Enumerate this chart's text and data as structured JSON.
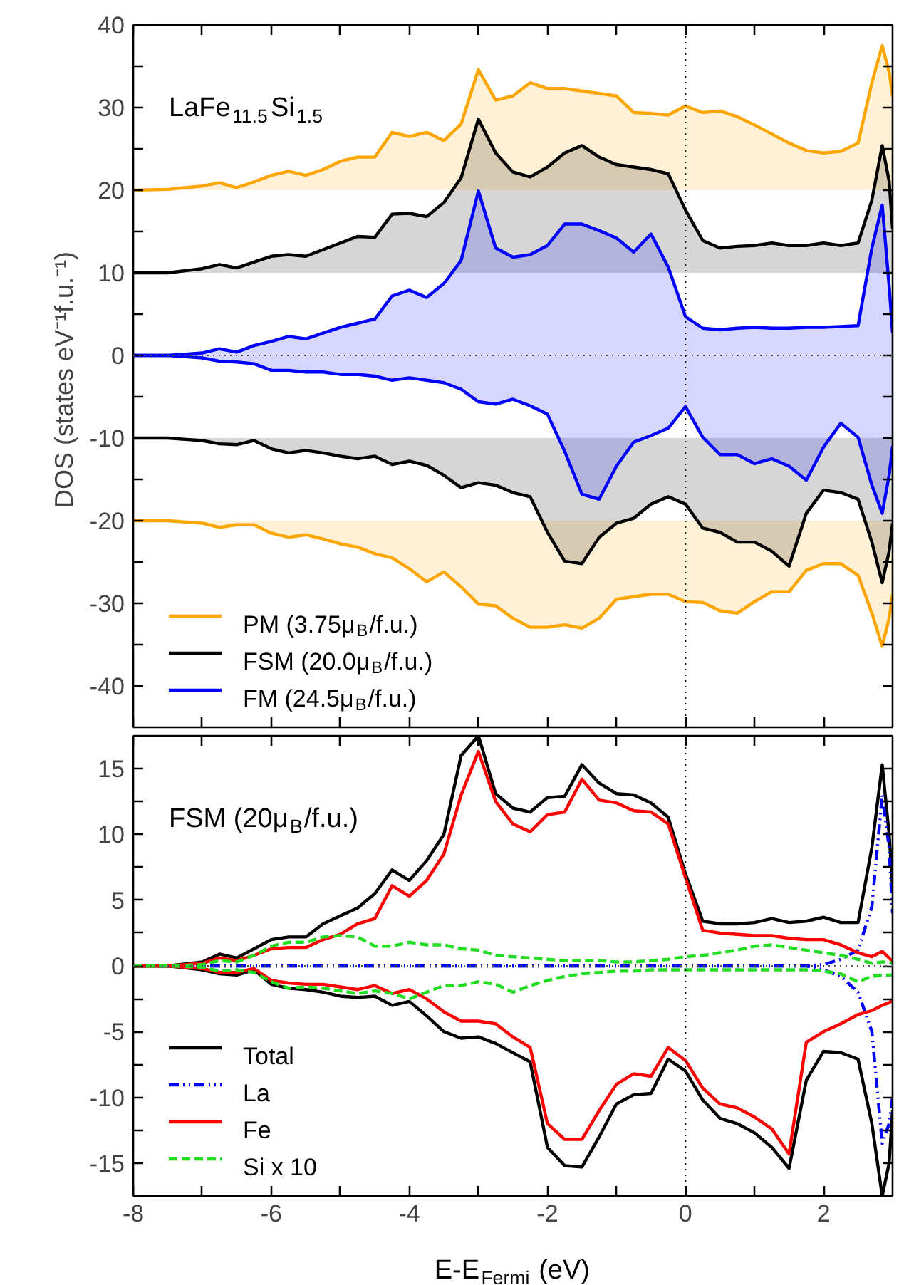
{
  "chart_data": [
    {
      "type": "area",
      "ylabel": "DOS  (states eV⁻¹f.u.⁻¹)",
      "tick_labels": "y",
      "legend": "bottom left",
      "xlim": [
        -8,
        3
      ],
      "ylim": [
        -45,
        40
      ],
      "xticks": [
        -8,
        {
          "value": -7,
          "label": null
        },
        -6,
        {
          "value": -5,
          "label": null
        },
        -4,
        {
          "value": -3,
          "label": null
        },
        -2,
        {
          "value": -1,
          "label": null
        },
        0,
        {
          "value": 1,
          "label": null
        },
        2
      ],
      "yticks": [
        -40,
        {
          "value": -35,
          "label": null
        },
        -30,
        {
          "value": -25,
          "label": null
        },
        -20,
        {
          "value": -15,
          "label": null
        },
        -10,
        {
          "value": -5,
          "label": null
        },
        0,
        {
          "value": 5,
          "label": null
        },
        10,
        {
          "value": 15,
          "label": null
        },
        20,
        {
          "value": 25,
          "label": null
        },
        30,
        {
          "value": 35,
          "label": null
        },
        40
      ],
      "annotations": [
        "LaFe$_{11.5}$Si$_{1.5}$"
      ],
      "ref_lines": [
        {
          "axis": "x",
          "value": 0,
          "line_style": "dotted",
          "color": "#000000"
        },
        {
          "axis": "y",
          "value": 0,
          "line_style": "dotted",
          "color": "#555555"
        }
      ],
      "x": [
        -8,
        -7.5,
        -7,
        -6.75,
        -6.5,
        -6.25,
        -6,
        -5.75,
        -5.5,
        -5.25,
        -5,
        -4.75,
        -4.5,
        -4.25,
        -4,
        -3.75,
        -3.5,
        -3.25,
        -3,
        -2.75,
        -2.5,
        -2.25,
        -2,
        -1.75,
        -1.5,
        -1.25,
        -1,
        -0.75,
        -0.5,
        -0.25,
        0,
        0.25,
        0.5,
        0.75,
        1,
        1.25,
        1.5,
        1.75,
        2,
        2.25,
        2.5,
        2.7,
        2.85,
        2.95,
        3
      ],
      "series": [
        {
          "name": "PM    (3.75μ$_{B}$/f.u.)",
          "color": "#ffa500",
          "values": [
            20,
            20.1,
            20.5,
            20.9,
            20.3,
            21,
            21.8,
            22.3,
            21.8,
            22.5,
            23.5,
            24,
            24,
            27,
            26.5,
            27,
            26,
            28,
            34.6,
            30.9,
            31.4,
            33,
            32.3,
            32.3,
            32,
            31.7,
            31.4,
            29.4,
            29.3,
            29.1,
            30.2,
            29.4,
            29.6,
            28.9,
            27.9,
            26.8,
            25.7,
            24.8,
            24.5,
            24.7,
            25.7,
            33,
            37.5,
            34.3,
            31.4
          ]
        },
        {
          "color": "#ffa500",
          "values": [
            -20,
            -20,
            -20.3,
            -20.8,
            -20.5,
            -20.5,
            -21.5,
            -22,
            -21.7,
            -22.2,
            -22.8,
            -23.2,
            -24,
            -24.5,
            -25.8,
            -27.4,
            -26.2,
            -28,
            -30.1,
            -30.3,
            -31.8,
            -32.9,
            -32.9,
            -32.6,
            -33,
            -31.8,
            -29.5,
            -29.2,
            -28.9,
            -28.9,
            -29.8,
            -29.9,
            -30.9,
            -31.2,
            -29.8,
            -28.6,
            -28.6,
            -26,
            -25.2,
            -25.2,
            -26.6,
            -31.2,
            -35.2,
            -31.8,
            -28.9
          ]
        },
        {
          "name": "FSM (20.0μ$_{B}$/f.u.)",
          "color": "#000000",
          "values": [
            10,
            10,
            10.5,
            11,
            10.6,
            11.3,
            12,
            12.2,
            12,
            12.8,
            13.6,
            14.4,
            14.3,
            17.1,
            17.2,
            16.8,
            18.5,
            21.5,
            28.6,
            24.5,
            22.2,
            21.6,
            22.8,
            24.5,
            25.4,
            24,
            23.1,
            22.8,
            22.5,
            22,
            17.6,
            13.9,
            13,
            13.2,
            13.3,
            13.6,
            13.3,
            13.3,
            13.6,
            13.3,
            13.6,
            18.8,
            25.4,
            21.1,
            15.3
          ]
        },
        {
          "color": "#000000",
          "values": [
            -10,
            -10,
            -10.3,
            -10.7,
            -10.8,
            -10.3,
            -11.3,
            -11.8,
            -11.5,
            -11.8,
            -12.2,
            -12.5,
            -12.2,
            -13.2,
            -12.8,
            -13.3,
            -14.5,
            -16,
            -15.4,
            -15.7,
            -16.6,
            -17.1,
            -21.4,
            -24.9,
            -25.2,
            -22,
            -20.3,
            -19.7,
            -18,
            -17.1,
            -18,
            -20.9,
            -21.4,
            -22.6,
            -22.6,
            -23.7,
            -25.5,
            -19.1,
            -16.3,
            -16.6,
            -17.4,
            -22.6,
            -27.5,
            -23.7,
            -20.3
          ]
        },
        {
          "name": "FM    (24.5μ$_{B}$/f.u.)",
          "color": "#0000ff",
          "values": [
            0,
            0,
            0.3,
            0.8,
            0.4,
            1.2,
            1.7,
            2.3,
            2,
            2.7,
            3.4,
            3.9,
            4.4,
            7.2,
            7.9,
            7,
            8.7,
            11.5,
            19.9,
            13,
            11.9,
            12.2,
            13.3,
            15.9,
            15.9,
            15.1,
            14.2,
            12.5,
            14.7,
            10.7,
            4.7,
            3.3,
            3.1,
            3.3,
            3.4,
            3.3,
            3.3,
            3.4,
            3.4,
            3.5,
            3.6,
            13,
            18.2,
            8.4,
            2.7
          ]
        },
        {
          "color": "#0000ff",
          "values": [
            0,
            0,
            -0.3,
            -0.7,
            -0.8,
            -1,
            -1.8,
            -1.8,
            -2,
            -2,
            -2.3,
            -2.3,
            -2.5,
            -3,
            -2.7,
            -3,
            -3.3,
            -4.1,
            -5.6,
            -5.9,
            -5.3,
            -6.1,
            -7.1,
            -11.6,
            -16.8,
            -17.4,
            -13.4,
            -10.5,
            -9.7,
            -8.8,
            -6.2,
            -9.9,
            -12,
            -12,
            -13.1,
            -12.5,
            -13.4,
            -15.1,
            -11.1,
            -8.2,
            -9.9,
            -15.7,
            -19.1,
            -14.5,
            -11
          ]
        }
      ]
    },
    {
      "type": "line",
      "xlabel": "E-E$_{Fermi}$  (eV)",
      "legend": "bottom left",
      "xlim": [
        -8,
        3
      ],
      "ylim": [
        -17.5,
        17.5
      ],
      "xticks": [
        -8,
        {
          "value": -7,
          "label": null
        },
        -6,
        {
          "value": -5,
          "label": null
        },
        -4,
        {
          "value": -3,
          "label": null
        },
        -2,
        {
          "value": -1,
          "label": null
        },
        0,
        {
          "value": 1,
          "label": null
        },
        2
      ],
      "yticks": [
        {
          "value": -17.5,
          "label": null
        },
        -15,
        {
          "value": -12.5,
          "label": null
        },
        -10,
        {
          "value": -7.5,
          "label": null
        },
        -5,
        {
          "value": -2.5,
          "label": null
        },
        0,
        {
          "value": 2.5,
          "label": null
        },
        5,
        {
          "value": 7.5,
          "label": null
        },
        10,
        {
          "value": 12.5,
          "label": null
        },
        15
      ],
      "annotations": [
        "FSM (20μ$_{B}$/f.u.)"
      ],
      "ref_lines": [
        {
          "axis": "x",
          "value": 0,
          "line_style": "dotted",
          "color": "#000000"
        },
        {
          "axis": "y",
          "value": 0,
          "line_style": "dotted",
          "color": "#555555"
        }
      ],
      "x": [
        -8,
        -7.5,
        -7,
        -6.75,
        -6.5,
        -6.25,
        -6,
        -5.75,
        -5.5,
        -5.25,
        -5,
        -4.75,
        -4.5,
        -4.25,
        -4,
        -3.75,
        -3.5,
        -3.25,
        -3,
        -2.75,
        -2.5,
        -2.25,
        -2,
        -1.75,
        -1.5,
        -1.25,
        -1,
        -0.75,
        -0.5,
        -0.25,
        0,
        0.25,
        0.5,
        0.75,
        1,
        1.25,
        1.5,
        1.75,
        2,
        2.25,
        2.5,
        2.7,
        2.85,
        2.95,
        3
      ],
      "series": [
        {
          "name": "Total",
          "color": "#000000",
          "line_style": "solid",
          "values": [
            0,
            0,
            0.3,
            0.9,
            0.6,
            1.3,
            2,
            2.2,
            2.2,
            3.2,
            3.8,
            4.4,
            5.5,
            7.3,
            6.5,
            8,
            10,
            16,
            17.5,
            13.1,
            12,
            11.7,
            12.8,
            12.9,
            15.3,
            13.9,
            13.1,
            13,
            12.4,
            11.3,
            7,
            3.4,
            3.2,
            3.2,
            3.3,
            3.6,
            3.3,
            3.4,
            3.7,
            3.3,
            3.3,
            9,
            15.3,
            10,
            6
          ]
        },
        {
          "color": "#000000",
          "line_style": "solid",
          "values": [
            0,
            0,
            -0.3,
            -0.6,
            -0.7,
            -0.3,
            -1.4,
            -1.7,
            -1.8,
            -2,
            -2.3,
            -2.4,
            -2.3,
            -3,
            -2.7,
            -3.8,
            -5,
            -5.5,
            -5.4,
            -5.9,
            -6.6,
            -7.3,
            -13.8,
            -15.2,
            -15.3,
            -13,
            -10.5,
            -9.8,
            -9.7,
            -7.1,
            -8,
            -10.2,
            -11.6,
            -12,
            -12.7,
            -13.8,
            -15.4,
            -8.7,
            -6.5,
            -6.6,
            -7.1,
            -12,
            -17.5,
            -15,
            -11
          ]
        },
        {
          "name": "La",
          "color": "#0000ff",
          "line_style": "dashdot",
          "values": [
            0,
            0,
            0,
            0,
            0,
            0,
            0,
            0,
            0,
            0,
            0,
            0,
            0,
            0,
            0,
            0,
            0,
            0,
            0,
            0,
            0,
            0,
            0,
            0,
            0,
            0,
            0,
            0,
            0,
            0,
            0,
            0,
            0,
            0,
            0,
            0,
            0,
            0,
            0.1,
            0.5,
            1.2,
            4.5,
            13,
            9,
            4
          ]
        },
        {
          "color": "#0000ff",
          "line_style": "dashdot",
          "values": [
            0,
            0,
            0,
            0,
            0,
            0,
            0,
            0,
            0,
            0,
            0,
            0,
            0,
            0,
            0,
            0,
            0,
            0,
            0,
            0,
            0,
            0,
            0,
            0,
            0,
            0,
            0,
            0,
            0,
            0,
            0,
            0,
            0,
            0,
            0,
            0,
            0,
            0,
            -0.3,
            -0.8,
            -2,
            -5,
            -13.5,
            -12,
            -10
          ]
        },
        {
          "name": "Fe",
          "color": "#ff0000",
          "line_style": "solid",
          "values": [
            0,
            0,
            0.2,
            0.6,
            0.4,
            0.8,
            1.3,
            1.4,
            1.4,
            2,
            2.4,
            3.2,
            3.6,
            6.1,
            5.3,
            6.5,
            8.5,
            13,
            16.3,
            12.5,
            10.8,
            10.2,
            11.5,
            11.7,
            14.2,
            12.6,
            12.4,
            11.8,
            11.7,
            10.8,
            6.7,
            2.7,
            2.5,
            2.4,
            2.3,
            2.3,
            2.1,
            2,
            2,
            1.6,
            1,
            0.7,
            1.1,
            0.6,
            0.3
          ]
        },
        {
          "color": "#ff0000",
          "line_style": "solid",
          "values": [
            0,
            0,
            -0.2,
            -0.5,
            -0.5,
            -0.2,
            -1.1,
            -1.3,
            -1.4,
            -1.4,
            -1.6,
            -1.8,
            -1.5,
            -2.1,
            -1.8,
            -2.5,
            -3.5,
            -4.2,
            -4.2,
            -4.4,
            -5.4,
            -6.2,
            -12,
            -13.2,
            -13.2,
            -11,
            -9,
            -8.2,
            -8.4,
            -6.2,
            -7.2,
            -9.3,
            -10.5,
            -10.8,
            -11.5,
            -12.4,
            -14.3,
            -5.8,
            -5,
            -4.4,
            -3.7,
            -3.4,
            -3,
            -2.8,
            -2.6
          ]
        },
        {
          "name": "Si x 10",
          "color": "#22dd22",
          "line_style": "dashed",
          "values": [
            0,
            0,
            0.1,
            0.4,
            0.3,
            0.8,
            1.5,
            1.8,
            1.8,
            2.2,
            2.3,
            2.2,
            1.5,
            1.5,
            1.8,
            1.6,
            1.6,
            1.3,
            1.2,
            0.8,
            0.7,
            0.6,
            0.5,
            0.4,
            0.4,
            0.4,
            0.3,
            0.3,
            0.4,
            0.5,
            0.7,
            0.8,
            1,
            1.2,
            1.5,
            1.6,
            1.4,
            1.2,
            1,
            0.8,
            0.5,
            0.2,
            0.3,
            0.3,
            0.2
          ]
        },
        {
          "color": "#22dd22",
          "line_style": "dashed",
          "values": [
            0,
            0,
            -0.1,
            -0.4,
            -0.3,
            -0.5,
            -1.2,
            -1.7,
            -1.6,
            -1.7,
            -1.9,
            -2.1,
            -1.9,
            -2.1,
            -2.5,
            -2,
            -1.5,
            -1.5,
            -1.2,
            -1.4,
            -2,
            -1.5,
            -1.1,
            -0.8,
            -0.6,
            -0.5,
            -0.4,
            -0.4,
            -0.3,
            -0.3,
            -0.3,
            -0.3,
            -0.3,
            -0.3,
            -0.3,
            -0.3,
            -0.3,
            -0.3,
            -0.4,
            -0.6,
            -1.2,
            -0.8,
            -0.7,
            -0.7,
            -0.7
          ]
        }
      ]
    }
  ]
}
